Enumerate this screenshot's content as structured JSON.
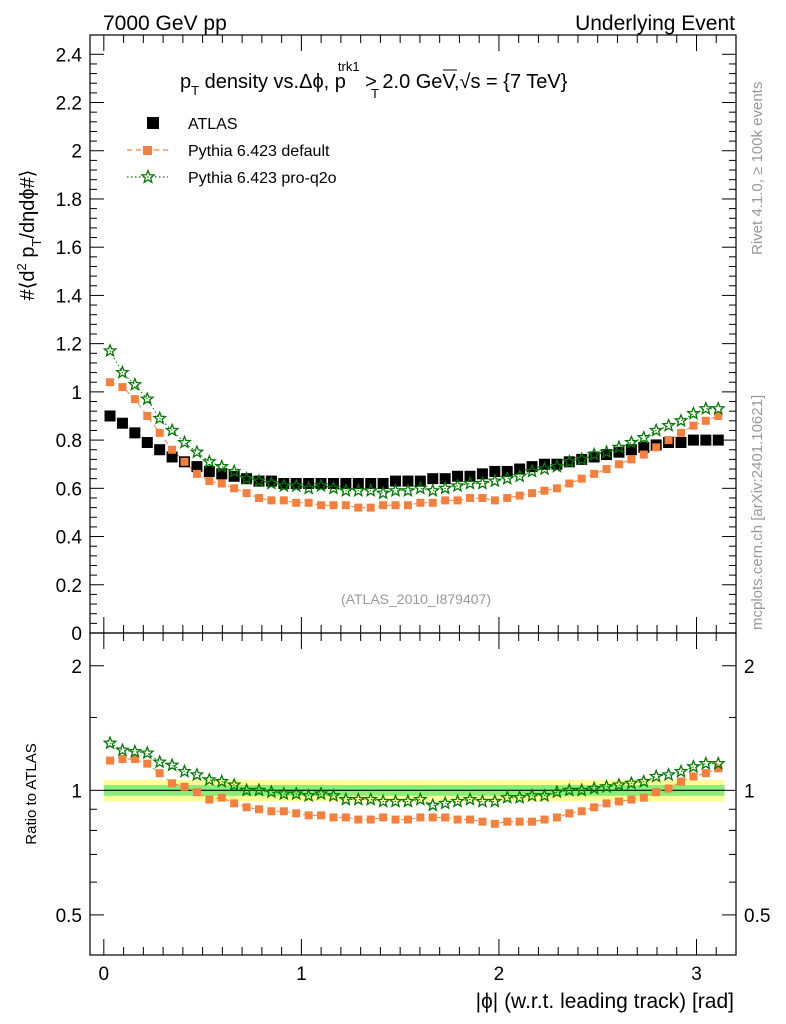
{
  "header": {
    "left": "7000 GeV pp",
    "right": "Underlying Event"
  },
  "side_labels": {
    "rivet": "Rivet 4.1.0, ≥ 100k events",
    "mcplots": "mcplots.cern.ch [arXiv:2401.10621]"
  },
  "watermark": "(ATLAS_2010_I879407)",
  "chart_data": [
    {
      "type": "scatter",
      "panel": "main",
      "title": "pT density vs.Δϕ, pTtrk1 > 2.0 GeV,√s = {7 TeV}",
      "title_parts": {
        "p": "p",
        "T": "T",
        "mid": " density vs.Δϕ, p",
        "trk1": "trk1",
        "gt": " > 2.0 GeV,",
        "sqrt": "√",
        "s_eq": "s = {7 TeV}"
      },
      "ylabel": "#⟨d² pT/dηdϕ#⟩",
      "ylabel_parts": {
        "a": "#⟨d",
        "sup2": "2",
        "b": " p",
        "T": "T",
        "c": "/dηdϕ#⟩"
      },
      "ylim": [
        0,
        2.48
      ],
      "xlim": [
        -0.07,
        3.2
      ],
      "yticks": [
        "0",
        "0.2",
        "0.4",
        "0.6",
        "0.8",
        "1",
        "1.2",
        "1.4",
        "1.6",
        "1.8",
        "2",
        "2.2",
        "2.4"
      ],
      "ytick_values": [
        0,
        0.2,
        0.4,
        0.6,
        0.8,
        1,
        1.2,
        1.4,
        1.6,
        1.8,
        2,
        2.2,
        2.4
      ],
      "x": [
        0.0314,
        0.0942,
        0.1571,
        0.2199,
        0.2827,
        0.3456,
        0.4084,
        0.4712,
        0.5341,
        0.5969,
        0.6597,
        0.7226,
        0.7854,
        0.8482,
        0.9111,
        0.9739,
        1.0367,
        1.0996,
        1.1624,
        1.2252,
        1.2881,
        1.3509,
        1.4137,
        1.4765,
        1.5394,
        1.6022,
        1.665,
        1.7279,
        1.7907,
        1.8535,
        1.9164,
        1.9792,
        2.042,
        2.1049,
        2.1677,
        2.2305,
        2.2934,
        2.3562,
        2.419,
        2.4819,
        2.5447,
        2.6075,
        2.6704,
        2.7332,
        2.796,
        2.8588,
        2.9217,
        2.9845,
        3.0473,
        3.1102
      ],
      "legend": {
        "position": "top-left",
        "entries": [
          "ATLAS",
          "Pythia 6.423 default",
          "Pythia 6.423 pro-q2o"
        ]
      },
      "series": [
        {
          "name": "ATLAS",
          "marker": "square",
          "color": "#000000",
          "values": [
            0.9,
            0.87,
            0.83,
            0.79,
            0.76,
            0.73,
            0.71,
            0.69,
            0.67,
            0.66,
            0.65,
            0.64,
            0.63,
            0.63,
            0.62,
            0.62,
            0.62,
            0.62,
            0.62,
            0.62,
            0.62,
            0.62,
            0.62,
            0.63,
            0.63,
            0.63,
            0.64,
            0.64,
            0.65,
            0.65,
            0.66,
            0.67,
            0.67,
            0.68,
            0.69,
            0.7,
            0.7,
            0.71,
            0.72,
            0.73,
            0.74,
            0.75,
            0.76,
            0.77,
            0.78,
            0.79,
            0.79,
            0.8,
            0.8,
            0.8
          ]
        },
        {
          "name": "Pythia 6.423 default",
          "marker": "square-small",
          "color": "#f5803e",
          "line": "dashed",
          "values": [
            1.04,
            1.02,
            0.97,
            0.9,
            0.83,
            0.76,
            0.71,
            0.66,
            0.63,
            0.62,
            0.6,
            0.58,
            0.56,
            0.55,
            0.55,
            0.54,
            0.54,
            0.53,
            0.53,
            0.53,
            0.52,
            0.52,
            0.53,
            0.53,
            0.53,
            0.54,
            0.54,
            0.55,
            0.55,
            0.56,
            0.56,
            0.55,
            0.56,
            0.57,
            0.58,
            0.59,
            0.6,
            0.62,
            0.64,
            0.66,
            0.68,
            0.7,
            0.72,
            0.74,
            0.77,
            0.8,
            0.83,
            0.86,
            0.88,
            0.9
          ]
        },
        {
          "name": "Pythia 6.423 pro-q2o",
          "marker": "star",
          "color": "#007a00",
          "line": "dotted",
          "values": [
            1.17,
            1.08,
            1.03,
            0.97,
            0.89,
            0.84,
            0.79,
            0.75,
            0.71,
            0.69,
            0.67,
            0.64,
            0.63,
            0.62,
            0.61,
            0.61,
            0.6,
            0.61,
            0.6,
            0.59,
            0.59,
            0.59,
            0.58,
            0.59,
            0.59,
            0.6,
            0.59,
            0.6,
            0.61,
            0.62,
            0.62,
            0.63,
            0.64,
            0.65,
            0.67,
            0.68,
            0.69,
            0.71,
            0.72,
            0.74,
            0.75,
            0.77,
            0.79,
            0.81,
            0.84,
            0.86,
            0.88,
            0.91,
            0.93,
            0.93
          ]
        }
      ]
    },
    {
      "type": "scatter",
      "panel": "ratio",
      "ylabel": "Ratio to ATLAS",
      "yscale": "log",
      "ylim": [
        0.4,
        2.4
      ],
      "xlim": [
        -0.07,
        3.2
      ],
      "yticks": [
        "0.5",
        "1",
        "2"
      ],
      "ytick_values": [
        0.5,
        1,
        2
      ],
      "xlabel": "|ϕ| (w.r.t. leading track) [rad]",
      "xticks": [
        "0",
        "1",
        "2",
        "3"
      ],
      "xtick_values": [
        0,
        1,
        2,
        3
      ],
      "bands": {
        "inner": 0.03,
        "outer": 0.06,
        "inner_color": "#88ee77",
        "outer_color": "#ffff99"
      },
      "series": [
        {
          "name": "Pythia 6.423 default",
          "color": "#f5803e",
          "values": [
            1.18,
            1.19,
            1.19,
            1.16,
            1.1,
            1.04,
            1.02,
            0.99,
            0.95,
            0.96,
            0.93,
            0.91,
            0.9,
            0.89,
            0.89,
            0.88,
            0.87,
            0.87,
            0.86,
            0.86,
            0.85,
            0.85,
            0.86,
            0.85,
            0.85,
            0.86,
            0.86,
            0.86,
            0.85,
            0.85,
            0.84,
            0.83,
            0.84,
            0.84,
            0.84,
            0.85,
            0.86,
            0.88,
            0.89,
            0.91,
            0.93,
            0.94,
            0.95,
            0.96,
            0.99,
            1.01,
            1.05,
            1.08,
            1.1,
            1.13
          ]
        },
        {
          "name": "Pythia 6.423 pro-q2o",
          "color": "#007a00",
          "values": [
            1.3,
            1.25,
            1.24,
            1.23,
            1.17,
            1.15,
            1.11,
            1.09,
            1.06,
            1.05,
            1.03,
            1.0,
            1.0,
            0.99,
            0.98,
            0.98,
            0.97,
            0.98,
            0.97,
            0.95,
            0.95,
            0.95,
            0.94,
            0.94,
            0.94,
            0.95,
            0.92,
            0.93,
            0.94,
            0.95,
            0.94,
            0.94,
            0.96,
            0.96,
            0.97,
            0.97,
            0.99,
            1.0,
            1.0,
            1.01,
            1.02,
            1.03,
            1.04,
            1.05,
            1.08,
            1.09,
            1.11,
            1.14,
            1.16,
            1.16
          ]
        }
      ]
    }
  ]
}
